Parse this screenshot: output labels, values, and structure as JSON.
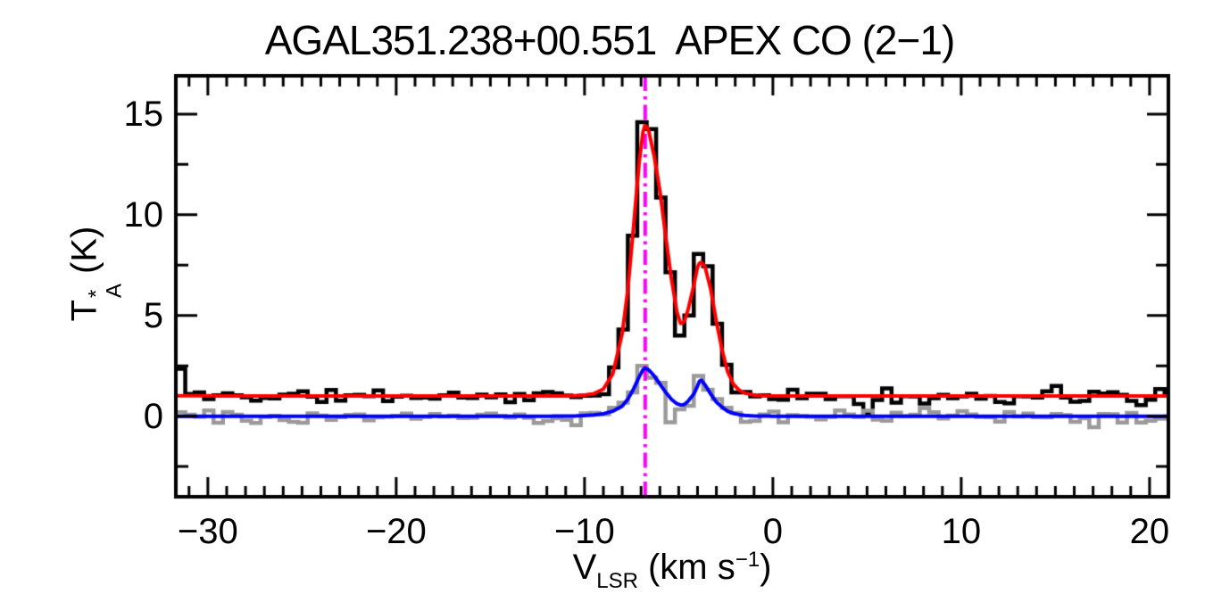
{
  "figure": {
    "background": "#ffffff",
    "frame_color": "#000000"
  },
  "chart_data": {
    "type": "line",
    "subtype": "spectrum",
    "title": "AGAL351.238+00.551  APEX CO (2−1)",
    "x_axis": {
      "label_v": "V",
      "label_sub": "LSR",
      "label_unit_open": "(km s",
      "label_unit_sup": "−1",
      "label_unit_close": ")",
      "range": [
        -31.7,
        21.0
      ],
      "ticks": [
        {
          "value": -30,
          "label": "−30"
        },
        {
          "value": -20,
          "label": "−20"
        },
        {
          "value": -10,
          "label": "−10"
        },
        {
          "value": 0,
          "label": "0"
        },
        {
          "value": 10,
          "label": "10"
        },
        {
          "value": 20,
          "label": "20"
        }
      ],
      "minor_tick_step": 1
    },
    "y_axis": {
      "label_t": "T",
      "label_sup": "*",
      "label_sub": "A",
      "label_unit": "(K)",
      "range": [
        -4.0,
        16.9
      ],
      "ticks": [
        {
          "value": 0,
          "label": "0"
        },
        {
          "value": 5,
          "label": "5"
        },
        {
          "value": 10,
          "label": "10"
        },
        {
          "value": 15,
          "label": "15"
        }
      ],
      "minor_tick_step": 2.5
    },
    "marker_line": {
      "name": "systemic-velocity-line",
      "velocity": -6.78,
      "color": "#ff00ff",
      "style": "dash-dot",
      "line_width": 4
    },
    "series": [
      {
        "name": "observed-spectrum",
        "style": "histogram",
        "color": "#000000",
        "line_width": 4.5,
        "channel_width": 0.5,
        "baseline": 1.0,
        "model": "fit-total",
        "noise_amplitude": 0.42,
        "noise_seed": 11,
        "overrides": {
          "-31.45": 2.35,
          "-6.95": 14.6,
          "-6.45": 14.25,
          "-4.95": 4.0,
          "-4.45": 5.0,
          "-3.95": 8.05,
          "-3.45": 7.45,
          "4.55": 0.6,
          "5.05": 0.15,
          "5.55": 0.8,
          "12.05": 0.7,
          "15.05": 1.5,
          "19.55": 0.55
        }
      },
      {
        "name": "second-spectrum",
        "style": "histogram",
        "color": "#9a9a9a",
        "line_width": 4.5,
        "channel_width": 0.5,
        "baseline": 0.0,
        "model": "fit-second",
        "noise_amplitude": 0.42,
        "noise_seed": 77,
        "overrides": {
          "-31.45": 0.2,
          "-10.45": -0.45,
          "-6.95": 2.5,
          "-5.45": -0.3,
          "-3.95": 2.0,
          "17.05": -0.55
        }
      },
      {
        "name": "fit-total",
        "style": "curve",
        "color": "#ff0000",
        "line_width": 4,
        "points": [
          [
            -31.7,
            1.02
          ],
          [
            -28,
            1.0
          ],
          [
            -24,
            1.0
          ],
          [
            -20,
            1.0
          ],
          [
            -16,
            1.0
          ],
          [
            -13,
            1.0
          ],
          [
            -11.5,
            1.0
          ],
          [
            -10.5,
            1.02
          ],
          [
            -10,
            1.05
          ],
          [
            -9.5,
            1.12
          ],
          [
            -9,
            1.35
          ],
          [
            -8.5,
            2.1
          ],
          [
            -8,
            4.1
          ],
          [
            -7.7,
            6.3
          ],
          [
            -7.4,
            9.4
          ],
          [
            -7.1,
            12.6
          ],
          [
            -6.9,
            14.1
          ],
          [
            -6.78,
            14.5
          ],
          [
            -6.6,
            14.2
          ],
          [
            -6.3,
            12.9
          ],
          [
            -6,
            11.2
          ],
          [
            -5.7,
            9.0
          ],
          [
            -5.4,
            6.9
          ],
          [
            -5.1,
            5.2
          ],
          [
            -4.9,
            4.6
          ],
          [
            -4.7,
            4.7
          ],
          [
            -4.5,
            5.3
          ],
          [
            -4.2,
            6.5
          ],
          [
            -4,
            7.4
          ],
          [
            -3.85,
            7.7
          ],
          [
            -3.6,
            7.4
          ],
          [
            -3.3,
            6.3
          ],
          [
            -3,
            4.7
          ],
          [
            -2.7,
            3.3
          ],
          [
            -2.4,
            2.2
          ],
          [
            -2.1,
            1.6
          ],
          [
            -1.8,
            1.3
          ],
          [
            -1.5,
            1.15
          ],
          [
            -1,
            1.05
          ],
          [
            -0.5,
            1.02
          ],
          [
            0,
            1.0
          ],
          [
            2,
            1.0
          ],
          [
            5,
            1.0
          ],
          [
            8,
            1.0
          ],
          [
            12,
            1.0
          ],
          [
            16,
            1.0
          ],
          [
            21,
            1.0
          ]
        ]
      },
      {
        "name": "fit-second",
        "style": "curve",
        "color": "#0000ff",
        "line_width": 4,
        "points": [
          [
            -31.7,
            0
          ],
          [
            -25,
            0
          ],
          [
            -20,
            0
          ],
          [
            -15,
            0
          ],
          [
            -12,
            0
          ],
          [
            -10.5,
            0.01
          ],
          [
            -10,
            0.03
          ],
          [
            -9.5,
            0.06
          ],
          [
            -9,
            0.12
          ],
          [
            -8.5,
            0.25
          ],
          [
            -8,
            0.5
          ],
          [
            -7.7,
            0.85
          ],
          [
            -7.4,
            1.35
          ],
          [
            -7.1,
            1.95
          ],
          [
            -6.9,
            2.3
          ],
          [
            -6.78,
            2.4
          ],
          [
            -6.6,
            2.3
          ],
          [
            -6.3,
            2.0
          ],
          [
            -6,
            1.6
          ],
          [
            -5.7,
            1.2
          ],
          [
            -5.4,
            0.85
          ],
          [
            -5.1,
            0.62
          ],
          [
            -4.9,
            0.55
          ],
          [
            -4.7,
            0.58
          ],
          [
            -4.5,
            0.75
          ],
          [
            -4.2,
            1.1
          ],
          [
            -4,
            1.5
          ],
          [
            -3.85,
            1.85
          ],
          [
            -3.6,
            1.55
          ],
          [
            -3.3,
            1.1
          ],
          [
            -3,
            0.7
          ],
          [
            -2.7,
            0.45
          ],
          [
            -2.4,
            0.25
          ],
          [
            -2.1,
            0.14
          ],
          [
            -1.8,
            0.08
          ],
          [
            -1.5,
            0.04
          ],
          [
            -1,
            0.01
          ],
          [
            0,
            0
          ],
          [
            5,
            0
          ],
          [
            10,
            0
          ],
          [
            15,
            0
          ],
          [
            21,
            0
          ]
        ]
      }
    ],
    "features": {
      "main_peak": {
        "velocity": -6.8,
        "T_A_K": 14.5
      },
      "secondary_peak": {
        "velocity": -3.85,
        "T_A_K": 7.7
      },
      "red_fit_baseline_K": 1.0,
      "blue_fit_baseline_K": 0.0
    },
    "grid": "off",
    "legend": "none"
  }
}
